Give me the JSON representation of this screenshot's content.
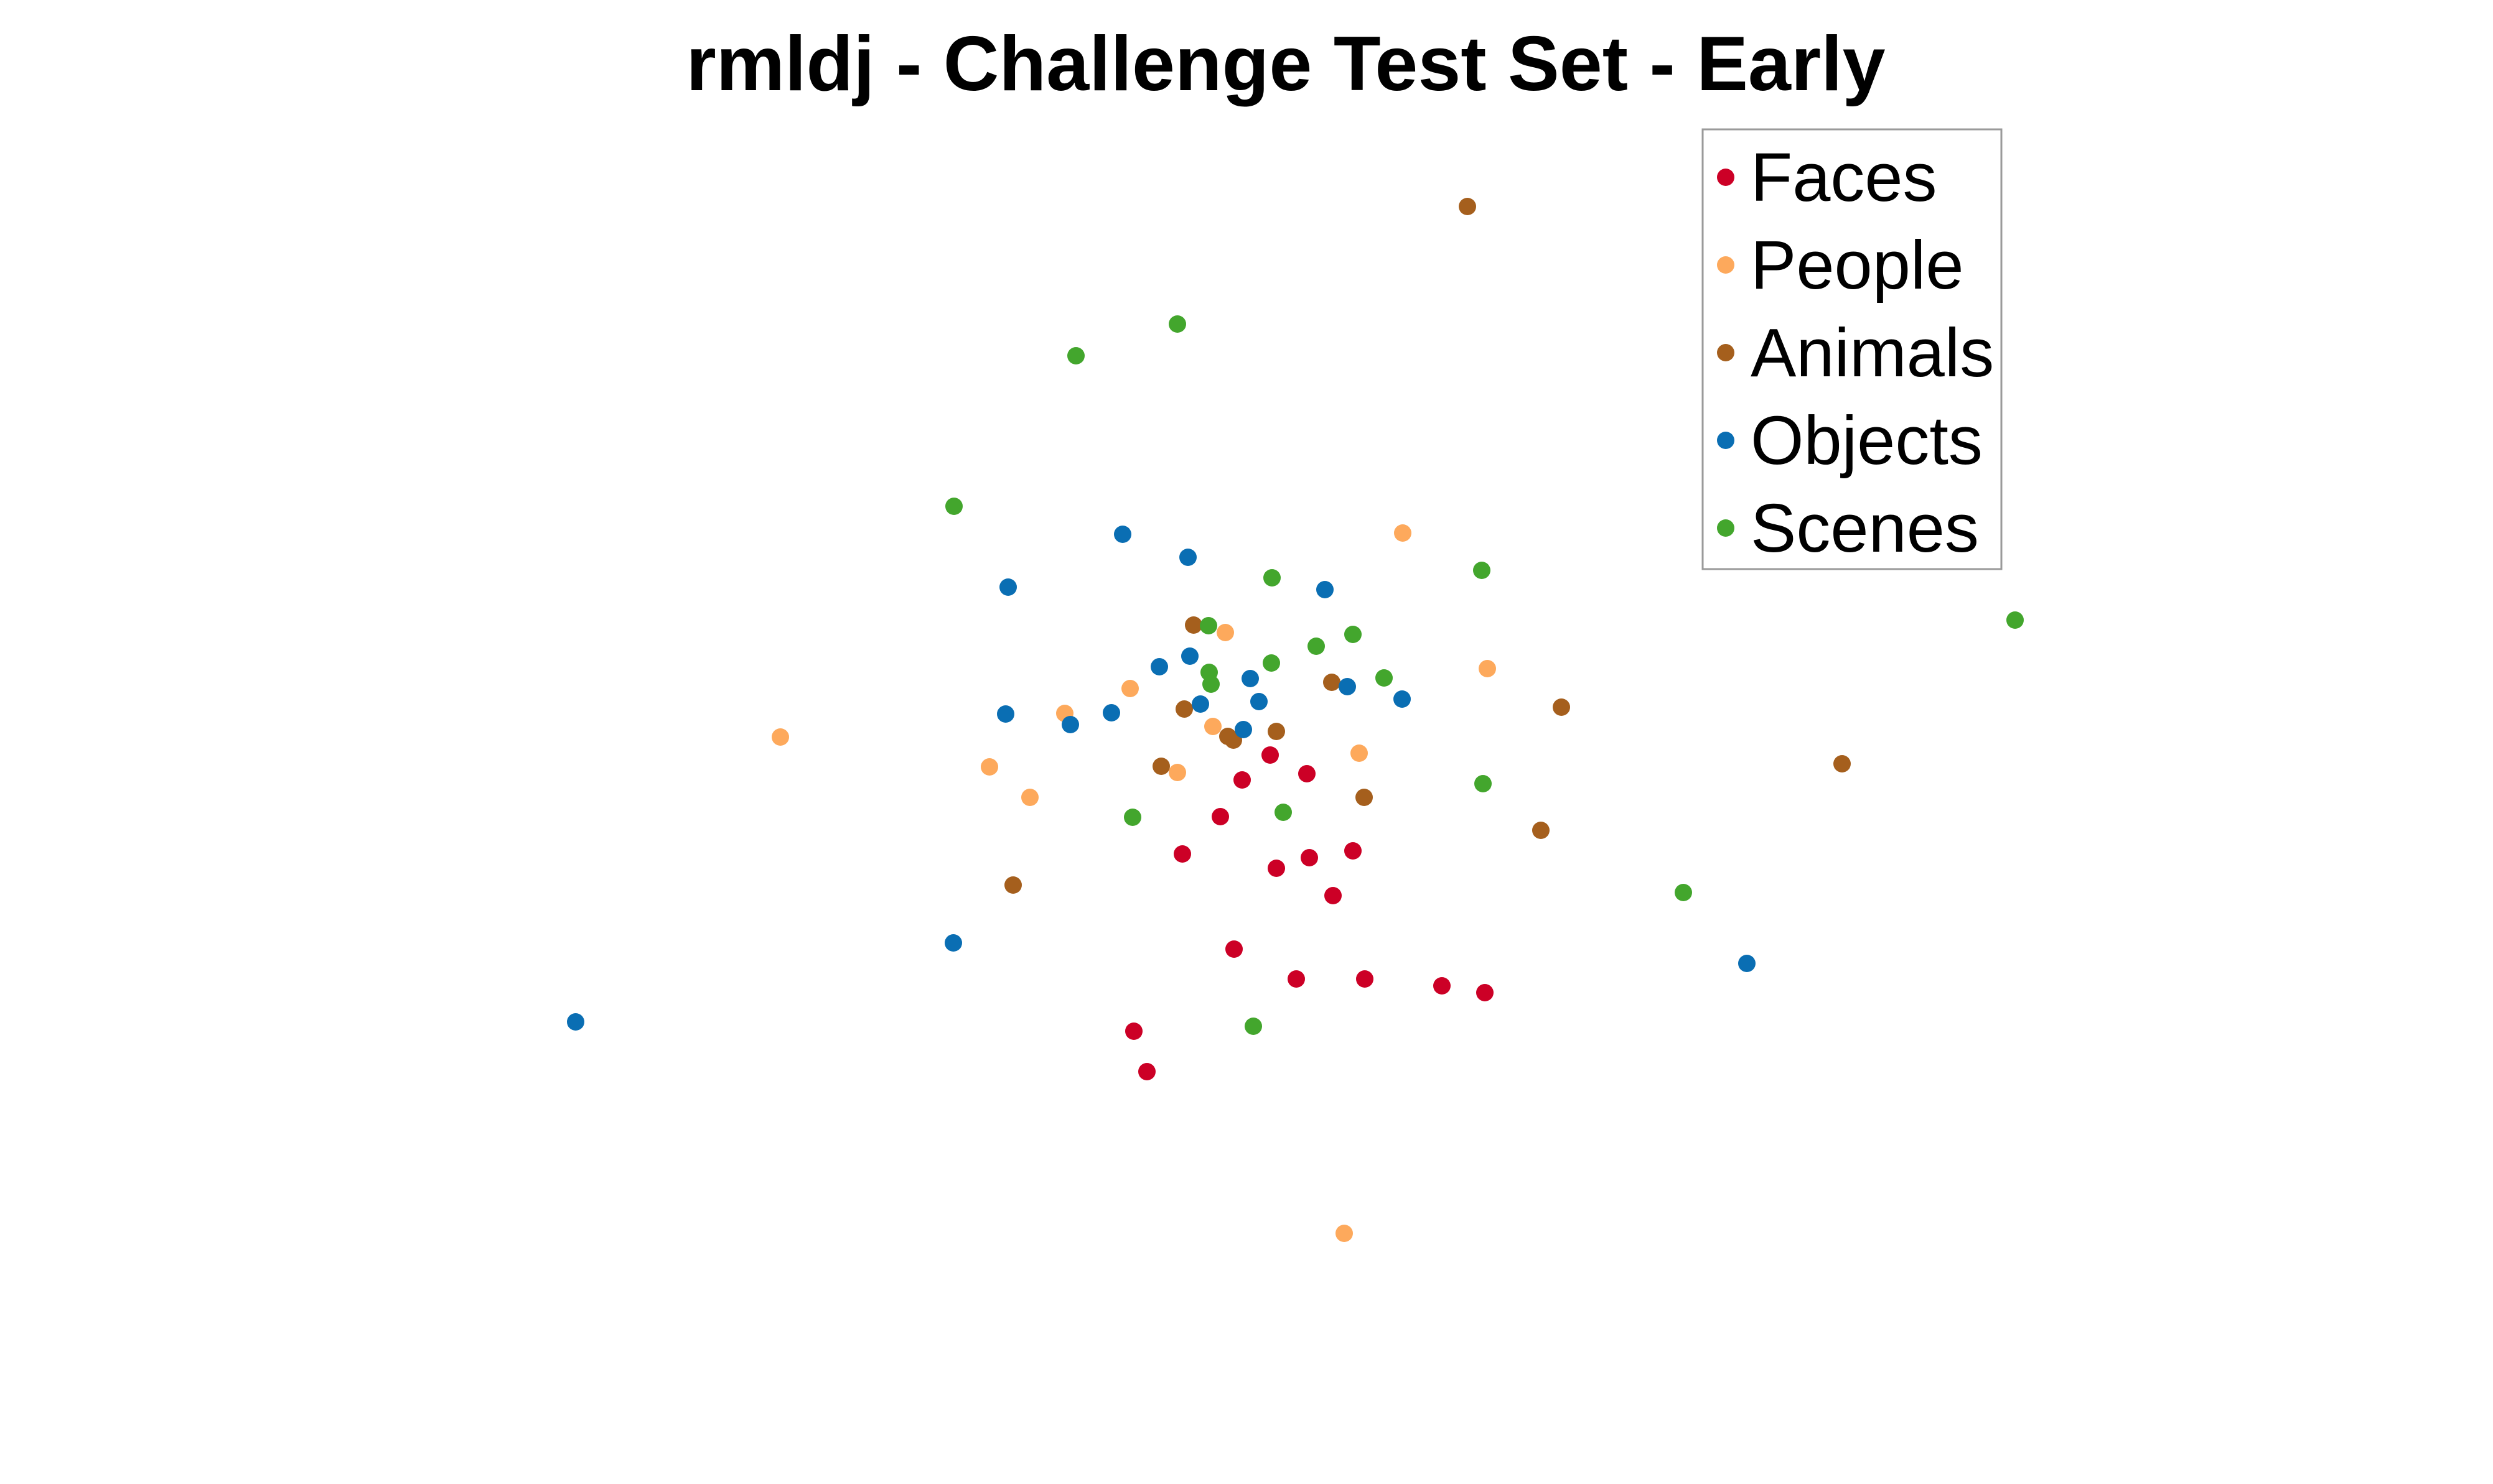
{
  "chart_data": {
    "type": "scatter",
    "title": "rmldj - Challenge Test Set - Early",
    "xlabel": "",
    "ylabel": "",
    "axes_visible": false,
    "grid": false,
    "legend_position": "top-right",
    "series": [
      {
        "name": "Faces",
        "color": "#cc0026",
        "points": [
          [
            2041,
            1214
          ],
          [
            2100,
            1244
          ],
          [
            1996,
            1254
          ],
          [
            1961,
            1313
          ],
          [
            2174,
            1368
          ],
          [
            2104,
            1379
          ],
          [
            1900,
            1373
          ],
          [
            2051,
            1396
          ],
          [
            2142,
            1440
          ],
          [
            1983,
            1526
          ],
          [
            2083,
            1574
          ],
          [
            2193,
            1574
          ],
          [
            2317,
            1585
          ],
          [
            2386,
            1596
          ],
          [
            1822,
            1658
          ],
          [
            1843,
            1723
          ]
        ]
      },
      {
        "name": "People",
        "color": "#fda95c",
        "points": [
          [
            2254,
            857
          ],
          [
            1969,
            1017
          ],
          [
            2390,
            1075
          ],
          [
            1816,
            1107
          ],
          [
            1711,
            1147
          ],
          [
            1949,
            1168
          ],
          [
            2184,
            1211
          ],
          [
            1892,
            1242
          ],
          [
            1590,
            1233
          ],
          [
            1655,
            1282
          ],
          [
            1254,
            1185
          ],
          [
            2160,
            1983
          ]
        ]
      },
      {
        "name": "Animals",
        "color": "#a55f1d",
        "points": [
          [
            2358,
            332
          ],
          [
            1918,
            1005
          ],
          [
            2140,
            1097
          ],
          [
            1903,
            1140
          ],
          [
            2051,
            1176
          ],
          [
            1973,
            1184
          ],
          [
            1982,
            1190
          ],
          [
            1866,
            1232
          ],
          [
            2509,
            1137
          ],
          [
            2960,
            1228
          ],
          [
            2192,
            1282
          ],
          [
            2476,
            1335
          ],
          [
            1628,
            1423
          ]
        ]
      },
      {
        "name": "Objects",
        "color": "#0a6eb3",
        "points": [
          [
            1804,
            859
          ],
          [
            1909,
            896
          ],
          [
            1620,
            944
          ],
          [
            2129,
            948
          ],
          [
            1912,
            1055
          ],
          [
            1863,
            1072
          ],
          [
            2009,
            1091
          ],
          [
            2165,
            1104
          ],
          [
            2253,
            1124
          ],
          [
            2023,
            1128
          ],
          [
            1929,
            1132
          ],
          [
            1616,
            1148
          ],
          [
            1786,
            1146
          ],
          [
            1720,
            1165
          ],
          [
            1998,
            1173
          ],
          [
            1532,
            1516
          ],
          [
            2807,
            1549
          ],
          [
            925,
            1643
          ]
        ]
      },
      {
        "name": "Scenes",
        "color": "#43a62d",
        "points": [
          [
            1892,
            521
          ],
          [
            1729,
            572
          ],
          [
            1533,
            814
          ],
          [
            2381,
            917
          ],
          [
            2044,
            929
          ],
          [
            3238,
            997
          ],
          [
            1942,
            1006
          ],
          [
            2174,
            1020
          ],
          [
            2115,
            1039
          ],
          [
            2043,
            1066
          ],
          [
            1943,
            1081
          ],
          [
            2224,
            1090
          ],
          [
            1946,
            1100
          ],
          [
            2383,
            1260
          ],
          [
            1820,
            1314
          ],
          [
            2062,
            1306
          ],
          [
            2705,
            1435
          ],
          [
            2014,
            1650
          ]
        ]
      }
    ]
  }
}
